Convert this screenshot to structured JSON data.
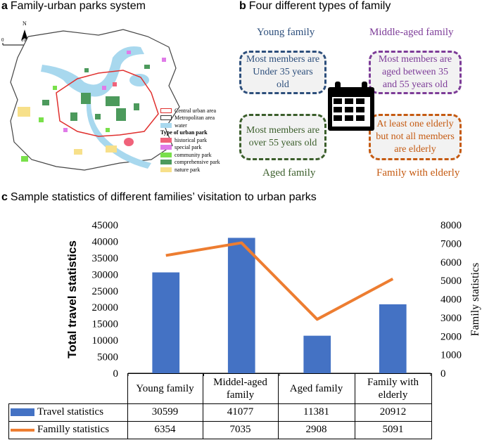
{
  "panel_a": {
    "letter": "a",
    "title": "Family-urban parks system",
    "north": "N",
    "scale_zero": "0",
    "scale_label": "10 km",
    "legend": [
      {
        "label": "Central urban area",
        "kind": "outline",
        "color": "#e0312f"
      },
      {
        "label": "Metropolitan area",
        "kind": "outline",
        "color": "#333333"
      },
      {
        "label": "water",
        "kind": "fill",
        "color": "#a8d8ee"
      },
      {
        "label": "Type of urban park",
        "kind": "heading"
      },
      {
        "label": "historical park",
        "kind": "fill",
        "color": "#f0627a"
      },
      {
        "label": "special park",
        "kind": "fill",
        "color": "#e07be8"
      },
      {
        "label": "community park",
        "kind": "fill",
        "color": "#79e04a"
      },
      {
        "label": "comprehensive park",
        "kind": "fill",
        "color": "#4c9a5c"
      },
      {
        "label": "nature park",
        "kind": "fill",
        "color": "#f7e08a"
      }
    ]
  },
  "panel_b": {
    "letter": "b",
    "title": "Four different types of family",
    "types": [
      {
        "name": "Young family",
        "desc": "Most members are Under 35 years old",
        "color": "#2d4f7c"
      },
      {
        "name": "Middle-aged family",
        "desc": "Most members are aged between 35 and 55 years old",
        "color": "#7d3c98"
      },
      {
        "name": "Aged family",
        "desc": "Most members are over 55 years old",
        "color": "#3b5e2b"
      },
      {
        "name": "Family with elderly",
        "desc": "At least one elderly but not all members are elderly",
        "color": "#c55a11"
      }
    ],
    "icon": "calendar-icon"
  },
  "panel_c": {
    "letter": "c",
    "title": "Sample statistics of different families’ visitation to urban parks"
  },
  "chart_data": {
    "type": "bar",
    "categories": [
      "Young family",
      "Middel-aged family",
      "Aged family",
      "Family with elderly"
    ],
    "series": [
      {
        "name": "Travel statistics",
        "type": "bar",
        "axis": "left",
        "color": "#4472c4",
        "values": [
          30599,
          41077,
          11381,
          20912
        ]
      },
      {
        "name": "Familly statistics",
        "type": "line",
        "axis": "right",
        "color": "#ed7d31",
        "values": [
          6354,
          7035,
          2908,
          5091
        ]
      }
    ],
    "ylabel": "Total travel statistics",
    "ylabel_right": "Family statistics",
    "ylim": [
      0,
      45000
    ],
    "ylim_right": [
      0,
      8000
    ],
    "yticks": [
      0,
      5000,
      10000,
      15000,
      20000,
      25000,
      30000,
      35000,
      40000,
      45000
    ],
    "yticks_right": [
      0,
      1000,
      2000,
      3000,
      4000,
      5000,
      6000,
      7000,
      8000
    ],
    "grid": false,
    "legend": "data-table"
  }
}
